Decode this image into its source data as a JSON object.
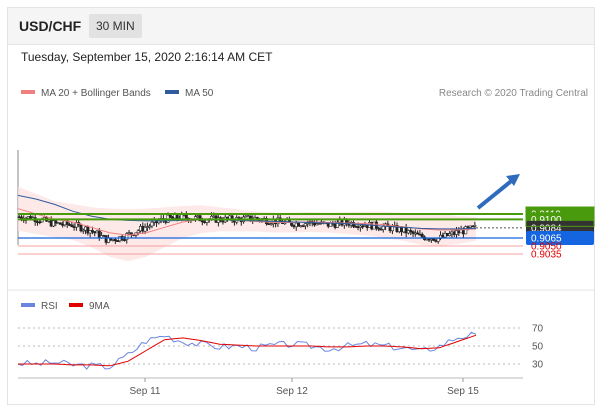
{
  "header": {
    "pair": "USD/CHF",
    "timeframe": "30 MIN"
  },
  "date": "Tuesday, September 15, 2020 2:16:14 AM CET",
  "legend": {
    "ma20_label": "MA 20 + Bollinger Bands",
    "ma50_label": "MA 50",
    "credit": "Research © 2020 Trading Central",
    "rsi_label": "RSI",
    "ma9_label": "9MA"
  },
  "colors": {
    "ma20": "#f08080",
    "ma50": "#2e5c9e",
    "resistance": "#4a9a0e",
    "support": "#1565e0",
    "target": "#e00000",
    "rsi": "#6a85e0",
    "ma9": "#e00000",
    "arrow": "#2e6bbd"
  },
  "chart_data": [
    {
      "type": "candlestick",
      "title": "USD/CHF",
      "x_ticks": [
        "Sep 11",
        "Sep 12",
        "Sep 15"
      ],
      "ylim": [
        0.903,
        0.915
      ],
      "levels": [
        {
          "value": "0.9110",
          "kind": "resistance"
        },
        {
          "value": "0.9100",
          "kind": "resistance"
        },
        {
          "value": "0.9084",
          "kind": "last"
        },
        {
          "value": "0.9065",
          "kind": "support"
        },
        {
          "value": "0.9050",
          "kind": "target"
        },
        {
          "value": "0.9035",
          "kind": "target"
        }
      ],
      "series": [
        {
          "name": "MA 20 + Bollinger Bands",
          "values": [
            0.912,
            0.911,
            0.91,
            0.9095,
            0.9085,
            0.9075,
            0.907,
            0.9075,
            0.9085,
            0.9095,
            0.91,
            0.91,
            0.9098,
            0.9096,
            0.9094,
            0.9094,
            0.9095,
            0.9094,
            0.9093,
            0.9092,
            0.909,
            0.9086,
            0.9082,
            0.908,
            0.908,
            0.9082
          ]
        },
        {
          "name": "MA 50",
          "values": [
            0.9145,
            0.9138,
            0.9128,
            0.9115,
            0.9106,
            0.91,
            0.9098,
            0.9097,
            0.9097,
            0.9098,
            0.9099,
            0.9099,
            0.9098,
            0.9097,
            0.9096,
            0.9095,
            0.9094,
            0.9093,
            0.9092,
            0.909,
            0.9087,
            0.9085,
            0.9083,
            0.9082,
            0.9082,
            0.9083
          ]
        },
        {
          "name": "Price",
          "values": [
            0.9105,
            0.9102,
            0.9092,
            0.909,
            0.908,
            0.906,
            0.907,
            0.9085,
            0.91,
            0.9104,
            0.9101,
            0.91,
            0.91,
            0.9102,
            0.9097,
            0.9092,
            0.9094,
            0.909,
            0.9094,
            0.909,
            0.9086,
            0.908,
            0.9068,
            0.9064,
            0.9075,
            0.9084
          ]
        }
      ]
    },
    {
      "type": "line",
      "title": "RSI",
      "ylim": [
        20,
        80
      ],
      "y_ticks": [
        "70",
        "50",
        "30"
      ],
      "x_ticks": [
        "Sep 11",
        "Sep 12",
        "Sep 15"
      ],
      "series": [
        {
          "name": "RSI",
          "values": [
            31,
            30,
            32,
            29,
            28,
            27,
            40,
            56,
            62,
            55,
            52,
            49,
            50,
            48,
            51,
            52,
            50,
            47,
            50,
            52,
            50,
            48,
            44,
            50,
            60,
            63
          ]
        },
        {
          "name": "9MA",
          "values": [
            30,
            30,
            30,
            29,
            29,
            28,
            33,
            45,
            57,
            59,
            56,
            52,
            51,
            50,
            50,
            50,
            50,
            49,
            49,
            50,
            50,
            49,
            47,
            48,
            55,
            62
          ]
        }
      ]
    }
  ]
}
